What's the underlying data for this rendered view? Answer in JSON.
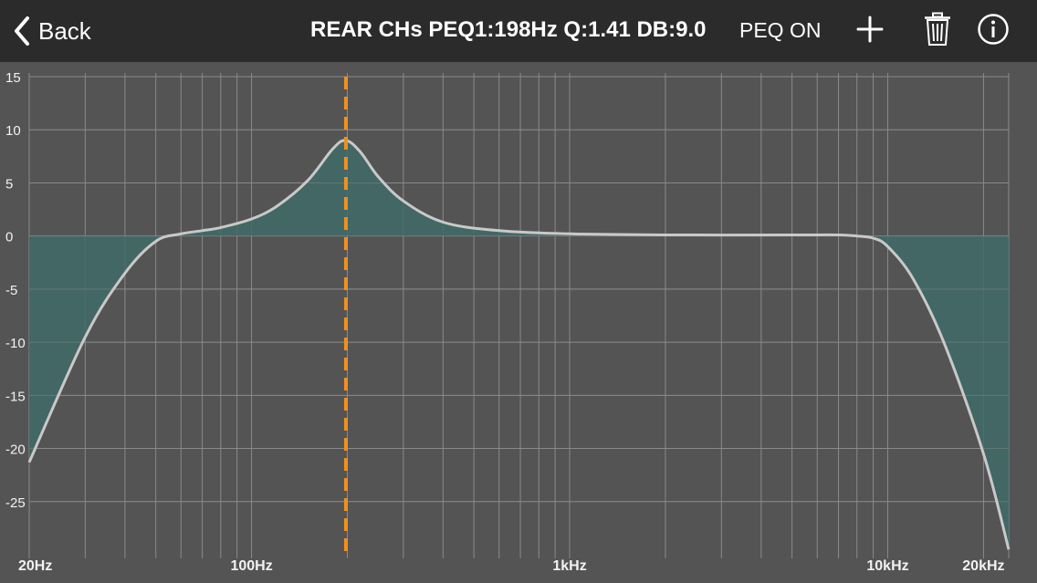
{
  "header": {
    "back_label": "Back",
    "title": "REAR CHs PEQ1:198Hz Q:1.41 DB:9.0",
    "peq_toggle": "PEQ ON",
    "icons": [
      "chevron-left-icon",
      "plus-icon",
      "trash-icon",
      "info-icon"
    ]
  },
  "chart_data": {
    "type": "line",
    "x_scale": "log",
    "x_unit": "Hz",
    "xlim": [
      20,
      24000
    ],
    "ylim": [
      -30,
      15
    ],
    "x_tick_labels": [
      {
        "value": 20,
        "label": "20Hz"
      },
      {
        "value": 100,
        "label": "100Hz"
      },
      {
        "value": 1000,
        "label": "1kHz"
      },
      {
        "value": 10000,
        "label": "10kHz"
      },
      {
        "value": 20000,
        "label": "20kHz"
      }
    ],
    "y_ticks": [
      15,
      10,
      5,
      0,
      -5,
      -10,
      -15,
      -20,
      -25
    ],
    "grid": true,
    "selected_filter": {
      "frequency": 198,
      "q": 1.41,
      "gain_db": 9.0
    },
    "response": {
      "x": [
        20,
        30,
        40,
        50,
        60,
        70,
        80,
        100,
        120,
        150,
        180,
        198,
        220,
        250,
        300,
        400,
        600,
        1000,
        2000,
        5000,
        7000,
        8000,
        9000,
        10000,
        12000,
        15000,
        20000,
        24000
      ],
      "y": [
        -21.3,
        -9.5,
        -3.5,
        -0.5,
        0.2,
        0.5,
        0.8,
        1.6,
        2.8,
        5.2,
        8.2,
        9.0,
        7.9,
        5.6,
        3.3,
        1.3,
        0.5,
        0.2,
        0.1,
        0.1,
        0.1,
        0.0,
        -0.2,
        -1.0,
        -4.0,
        -10.0,
        -20.5,
        -29.5
      ]
    },
    "colors": {
      "background": "#545454",
      "grid": "#8a8a8a",
      "curve": "#c9c9c9",
      "fill": "#3f6b68",
      "marker": "#f0901e",
      "tick_text": "#f2f2f2"
    }
  }
}
